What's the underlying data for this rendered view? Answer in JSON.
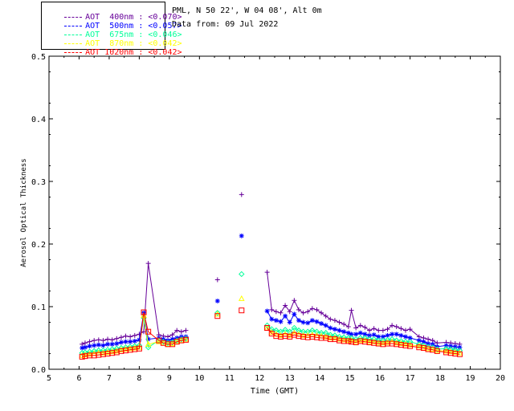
{
  "header": {
    "site": "PML, N 50 22', W 04 08', Alt 0m",
    "date_line": "Data from: 09 Jul 2022"
  },
  "legend": [
    {
      "label": "AOT  400nm : <0.070>",
      "color": "#660099"
    },
    {
      "label": "AOT  500nm : <0.057>",
      "color": "#0000ff"
    },
    {
      "label": "AOT  675nm : <0.046>",
      "color": "#00ff99"
    },
    {
      "label": "AOT  870nm : <0.042>",
      "color": "#ffff00"
    },
    {
      "label": "AOT 1020nm : <0.042>",
      "color": "#ff0000"
    }
  ],
  "chart_data": {
    "type": "scatter",
    "xlabel": "Time (GMT)",
    "ylabel": "Aerosol Optical Thickness",
    "xlim": [
      5,
      20
    ],
    "ylim": [
      0,
      0.5
    ],
    "xticks": [
      5,
      6,
      7,
      8,
      9,
      10,
      11,
      12,
      13,
      14,
      15,
      16,
      17,
      18,
      19,
      20
    ],
    "yticks": [
      0.0,
      0.1,
      0.2,
      0.3,
      0.4,
      0.5
    ],
    "ytick_labels": [
      "0.0",
      "0.1",
      "0.2",
      "0.3",
      "0.4",
      "0.5"
    ],
    "x": [
      6.1,
      6.2,
      6.35,
      6.5,
      6.65,
      6.8,
      6.95,
      7.1,
      7.25,
      7.4,
      7.55,
      7.7,
      7.85,
      8.0,
      8.15,
      8.3,
      8.65,
      8.8,
      8.95,
      9.1,
      9.25,
      9.4,
      9.55,
      10.6,
      11.4,
      12.25,
      12.4,
      12.55,
      12.7,
      12.85,
      13.0,
      13.15,
      13.3,
      13.45,
      13.6,
      13.75,
      13.9,
      14.05,
      14.2,
      14.35,
      14.5,
      14.65,
      14.8,
      14.95,
      15.05,
      15.2,
      15.35,
      15.5,
      15.65,
      15.8,
      15.95,
      16.1,
      16.25,
      16.4,
      16.55,
      16.7,
      16.85,
      17.0,
      17.3,
      17.45,
      17.6,
      17.75,
      17.9,
      18.2,
      18.35,
      18.5,
      18.65
    ],
    "series": [
      {
        "name": "AOT 400nm",
        "color": "#660099",
        "marker": "plus",
        "values": [
          0.04,
          0.042,
          0.044,
          0.046,
          0.047,
          0.046,
          0.048,
          0.047,
          0.049,
          0.051,
          0.053,
          0.052,
          0.054,
          0.056,
          0.06,
          0.169,
          0.055,
          0.053,
          0.052,
          0.055,
          0.062,
          0.06,
          0.062,
          0.143,
          0.279,
          0.155,
          0.095,
          0.092,
          0.09,
          0.102,
          0.092,
          0.11,
          0.095,
          0.09,
          0.092,
          0.097,
          0.095,
          0.09,
          0.085,
          0.08,
          0.078,
          0.075,
          0.072,
          0.068,
          0.094,
          0.066,
          0.07,
          0.067,
          0.062,
          0.065,
          0.062,
          0.062,
          0.064,
          0.07,
          0.068,
          0.065,
          0.062,
          0.064,
          0.052,
          0.05,
          0.048,
          0.046,
          0.042,
          0.043,
          0.042,
          0.041,
          0.04
        ]
      },
      {
        "name": "AOT 500nm",
        "color": "#0000ff",
        "marker": "star",
        "values": [
          0.034,
          0.035,
          0.037,
          0.038,
          0.039,
          0.038,
          0.04,
          0.04,
          0.041,
          0.043,
          0.044,
          0.044,
          0.045,
          0.047,
          0.09,
          0.048,
          0.05,
          0.048,
          0.046,
          0.048,
          0.05,
          0.052,
          0.052,
          0.109,
          0.213,
          0.093,
          0.08,
          0.078,
          0.076,
          0.085,
          0.075,
          0.088,
          0.078,
          0.075,
          0.074,
          0.078,
          0.076,
          0.073,
          0.07,
          0.066,
          0.064,
          0.062,
          0.06,
          0.058,
          0.056,
          0.056,
          0.058,
          0.056,
          0.054,
          0.055,
          0.052,
          0.052,
          0.054,
          0.056,
          0.056,
          0.054,
          0.052,
          0.05,
          0.046,
          0.044,
          0.041,
          0.04,
          0.036,
          0.038,
          0.037,
          0.036,
          0.035
        ]
      },
      {
        "name": "AOT 675nm",
        "color": "#00ff99",
        "marker": "diamond",
        "values": [
          0.026,
          0.027,
          0.028,
          0.029,
          0.03,
          0.03,
          0.031,
          0.032,
          0.033,
          0.034,
          0.035,
          0.036,
          0.037,
          0.038,
          0.082,
          0.035,
          0.046,
          0.044,
          0.042,
          0.043,
          0.046,
          0.048,
          0.049,
          0.09,
          0.152,
          0.07,
          0.064,
          0.062,
          0.06,
          0.063,
          0.06,
          0.066,
          0.062,
          0.06,
          0.06,
          0.062,
          0.06,
          0.058,
          0.058,
          0.055,
          0.054,
          0.052,
          0.051,
          0.05,
          0.05,
          0.048,
          0.05,
          0.05,
          0.048,
          0.048,
          0.046,
          0.046,
          0.047,
          0.048,
          0.046,
          0.045,
          0.044,
          0.044,
          0.04,
          0.038,
          0.036,
          0.035,
          0.032,
          0.033,
          0.032,
          0.031,
          0.03
        ]
      },
      {
        "name": "AOT 870nm",
        "color": "#ffff00",
        "marker": "triangle",
        "values": [
          0.022,
          0.023,
          0.024,
          0.025,
          0.026,
          0.026,
          0.027,
          0.028,
          0.029,
          0.031,
          0.032,
          0.033,
          0.034,
          0.035,
          0.086,
          0.04,
          0.044,
          0.042,
          0.04,
          0.041,
          0.044,
          0.046,
          0.047,
          0.088,
          0.113,
          0.066,
          0.059,
          0.056,
          0.054,
          0.056,
          0.054,
          0.058,
          0.056,
          0.054,
          0.054,
          0.055,
          0.054,
          0.053,
          0.052,
          0.05,
          0.05,
          0.048,
          0.047,
          0.046,
          0.046,
          0.044,
          0.046,
          0.046,
          0.044,
          0.044,
          0.042,
          0.042,
          0.043,
          0.044,
          0.042,
          0.041,
          0.04,
          0.039,
          0.037,
          0.035,
          0.033,
          0.032,
          0.03,
          0.029,
          0.028,
          0.027,
          0.026
        ]
      },
      {
        "name": "AOT 1020nm",
        "color": "#ff0000",
        "marker": "square",
        "values": [
          0.02,
          0.021,
          0.022,
          0.022,
          0.023,
          0.024,
          0.025,
          0.026,
          0.027,
          0.029,
          0.03,
          0.031,
          0.032,
          0.033,
          0.091,
          0.06,
          0.046,
          0.042,
          0.04,
          0.04,
          0.044,
          0.046,
          0.047,
          0.085,
          0.094,
          0.066,
          0.057,
          0.053,
          0.052,
          0.053,
          0.052,
          0.055,
          0.053,
          0.052,
          0.051,
          0.052,
          0.051,
          0.05,
          0.05,
          0.048,
          0.048,
          0.046,
          0.045,
          0.045,
          0.044,
          0.043,
          0.045,
          0.044,
          0.043,
          0.042,
          0.041,
          0.04,
          0.041,
          0.041,
          0.04,
          0.039,
          0.038,
          0.037,
          0.035,
          0.034,
          0.032,
          0.031,
          0.029,
          0.027,
          0.026,
          0.025,
          0.024
        ]
      }
    ]
  }
}
